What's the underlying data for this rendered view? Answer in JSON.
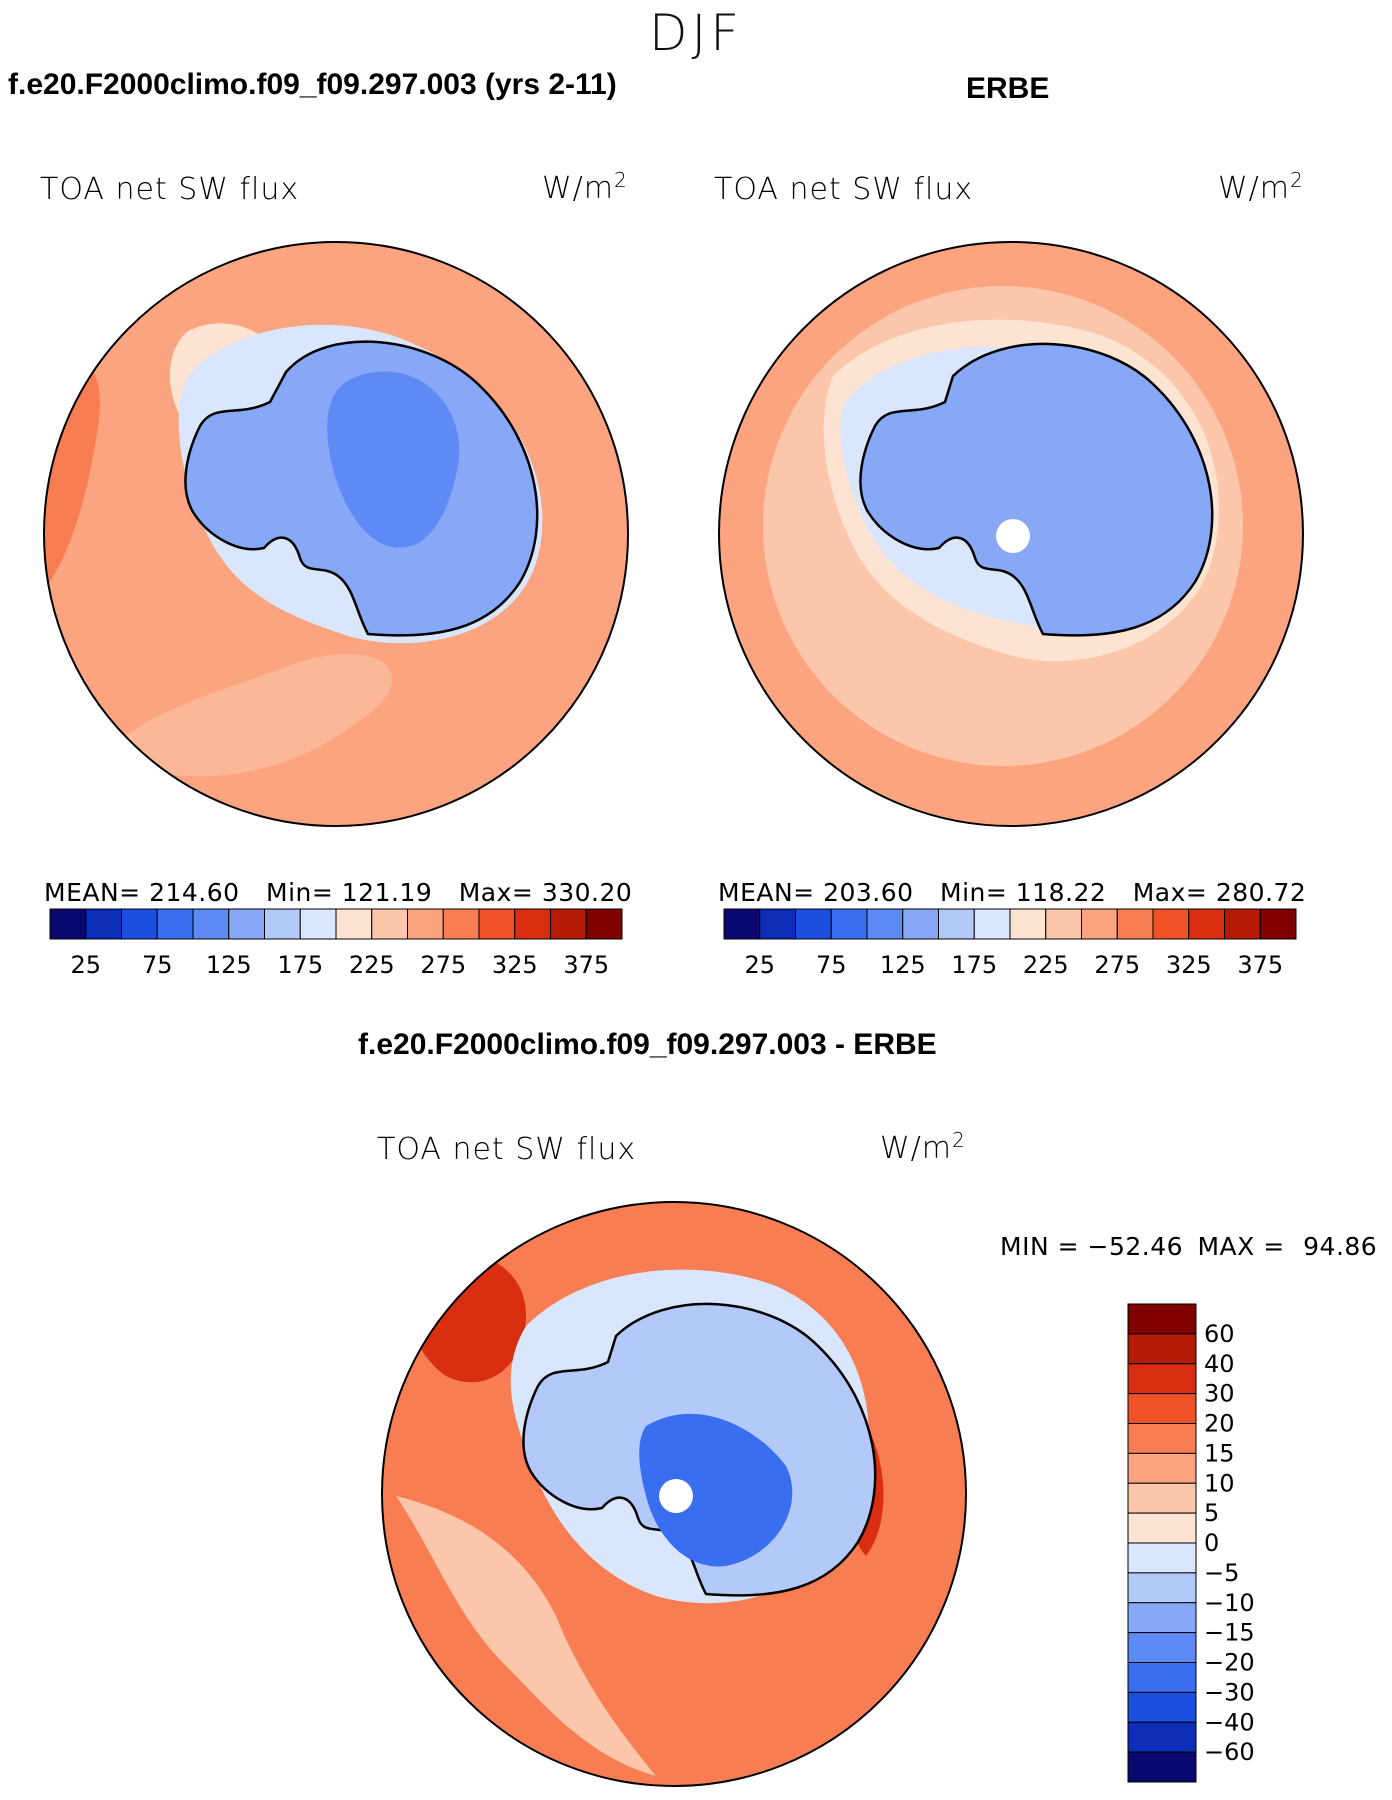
{
  "page": {
    "season": "DJF",
    "top_left_title": "f.e20.F2000climo.f09_f09.297.003 (yrs 2-11)",
    "top_right_title": "ERBE",
    "diff_title": "f.e20.F2000climo.f09_f09.297.003 - ERBE"
  },
  "colors": {
    "abs_scale": [
      "#08086e",
      "#0b2db7",
      "#1b4fe0",
      "#3a6ef0",
      "#5d8af5",
      "#86a8f7",
      "#b3c9f9",
      "#dae6fb",
      "#fde4d2",
      "#fcc6aa",
      "#fba47f",
      "#f87d52",
      "#ee5226",
      "#d92f10",
      "#b51a05",
      "#800000"
    ],
    "diff_scale": [
      "#08086e",
      "#0b2db7",
      "#1b4fe0",
      "#3a6ef0",
      "#5d8af5",
      "#86a8f7",
      "#b3c9f9",
      "#dae6fb",
      "#fde4d2",
      "#fcc6aa",
      "#fba47f",
      "#f87d52",
      "#ee5226",
      "#d92f10",
      "#b51a05",
      "#800000"
    ],
    "ocean_model": "#fba47f",
    "ocean_obs": "#fcc6aa",
    "ocean_diff": "#f87d52",
    "antarctica": "#86a8f7",
    "antarctica_deep": "#5d8af5"
  },
  "chart_data": [
    {
      "type": "heatmap",
      "projection": "south-polar-stereographic",
      "title": "f.e20.F2000climo.f09_f09.297.003 (yrs 2-11)",
      "left_label": "TOA net SW flux",
      "units": "W/m",
      "units_superscript": "2",
      "stats": {
        "mean_label": "MEAN=",
        "mean": "214.60",
        "min_label": "Min=",
        "min": "121.19",
        "max_label": "Max=",
        "max": "330.20"
      },
      "colorbar": {
        "orientation": "horizontal",
        "levels": [
          25,
          50,
          75,
          100,
          125,
          150,
          175,
          200,
          225,
          250,
          275,
          300,
          325,
          350,
          375
        ],
        "tick_labels": [
          "25",
          "75",
          "125",
          "175",
          "225",
          "275",
          "325",
          "375"
        ]
      }
    },
    {
      "type": "heatmap",
      "projection": "south-polar-stereographic",
      "title": "ERBE",
      "left_label": "TOA net SW flux",
      "units": "W/m",
      "units_superscript": "2",
      "stats": {
        "mean_label": "MEAN=",
        "mean": "203.60",
        "min_label": "Min=",
        "min": "118.22",
        "max_label": "Max=",
        "max": "280.72"
      },
      "colorbar": {
        "orientation": "horizontal",
        "levels": [
          25,
          50,
          75,
          100,
          125,
          150,
          175,
          200,
          225,
          250,
          275,
          300,
          325,
          350,
          375
        ],
        "tick_labels": [
          "25",
          "75",
          "125",
          "175",
          "225",
          "275",
          "325",
          "375"
        ]
      }
    },
    {
      "type": "heatmap",
      "projection": "south-polar-stereographic",
      "title": "f.e20.F2000climo.f09_f09.297.003 - ERBE",
      "left_label": "TOA net SW flux",
      "units": "W/m",
      "units_superscript": "2",
      "minmax": {
        "min_label": "MIN =",
        "min": "−52.46",
        "max_label": "MAX =",
        "max": "94.86"
      },
      "colorbar": {
        "orientation": "vertical",
        "levels": [
          -60,
          -40,
          -30,
          -20,
          -15,
          -10,
          -5,
          0,
          5,
          10,
          15,
          20,
          30,
          40,
          60
        ],
        "tick_labels": [
          "60",
          "40",
          "30",
          "20",
          "15",
          "10",
          "5",
          "0",
          "−5",
          "−10",
          "−15",
          "−20",
          "−30",
          "−40",
          "−60"
        ]
      }
    }
  ]
}
